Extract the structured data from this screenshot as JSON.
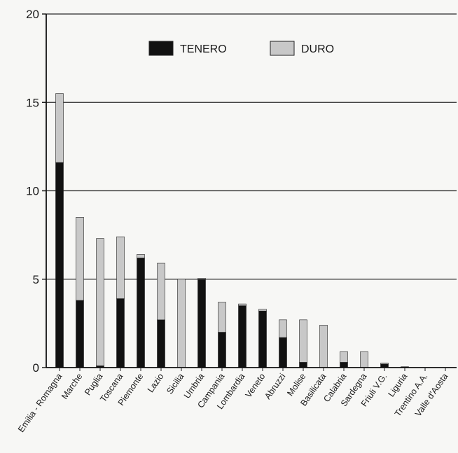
{
  "chart_data": {
    "type": "bar",
    "stacked": true,
    "categories": [
      "Emilia - Romagna",
      "Marche",
      "Puglia",
      "Toscana",
      "Piemonte",
      "Lazio",
      "Sicilia",
      "Umbria",
      "Campania",
      "Lombardia",
      "Veneto",
      "Abruzzi",
      "Molise",
      "Basilicata",
      "Calabria",
      "Sardegna",
      "Friuli V.G.",
      "Liguria",
      "Trentino A.A.",
      "Valle d'Aosta"
    ],
    "series": [
      {
        "name": "TENERO",
        "color": "#111111",
        "values": [
          11.6,
          3.8,
          0.1,
          3.9,
          6.2,
          2.7,
          0.0,
          5.0,
          2.0,
          3.5,
          3.2,
          1.7,
          0.3,
          0.0,
          0.3,
          0.0,
          0.2,
          0.05,
          0.0,
          0.0
        ]
      },
      {
        "name": "DURO",
        "color": "#c8c8c8",
        "values": [
          3.9,
          4.7,
          7.2,
          3.5,
          0.2,
          3.2,
          5.0,
          0.05,
          1.7,
          0.1,
          0.1,
          1.0,
          2.4,
          2.4,
          0.6,
          0.9,
          0.05,
          0.0,
          0.0,
          0.0
        ]
      }
    ],
    "title": "",
    "xlabel": "",
    "ylabel": "",
    "ylim": [
      0,
      20
    ],
    "yticks": [
      "0",
      "5",
      "10",
      "15",
      "20"
    ],
    "grid": true,
    "legend_position": "top-center"
  }
}
